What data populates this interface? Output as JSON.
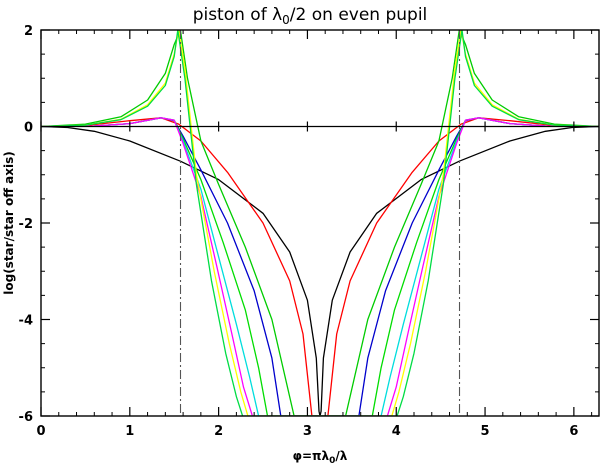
{
  "chart_data": {
    "type": "line",
    "title": "piston of λ0/2 on even pupil",
    "title_main": "piston of λ",
    "title_sub": "0",
    "title_tail": "/2 on even pupil",
    "xlabel": "φ=πλ0/λ",
    "xlabel_main": "φ=πλ",
    "xlabel_sub": "0",
    "xlabel_tail": "/λ",
    "ylabel": "log(star/star off axis)",
    "xlim": [
      0,
      6.283
    ],
    "ylim": [
      -6,
      2
    ],
    "x_ticks": [
      0,
      1,
      2,
      3,
      4,
      5,
      6
    ],
    "y_ticks": [
      -6,
      -4,
      -2,
      0,
      2
    ],
    "x_tick_labels": [
      "0",
      "1",
      "2",
      "3",
      "4",
      "5",
      "6"
    ],
    "y_tick_labels": [
      "-6",
      "-4",
      "-2",
      "0",
      "2"
    ],
    "grid": false,
    "legend": "none",
    "reference_lines": [
      {
        "kind": "horizontal",
        "y": 0,
        "color": "#000000",
        "style": "solid"
      },
      {
        "kind": "vertical",
        "x": 1.5708,
        "color": "#555555",
        "style": "dash-dot"
      },
      {
        "kind": "vertical",
        "x": 4.7124,
        "color": "#555555",
        "style": "dash-dot"
      }
    ],
    "series": [
      {
        "color": "#000000",
        "x": [
          0,
          0.3,
          0.6,
          1.0,
          1.57,
          2.0,
          2.5,
          2.8,
          3.0,
          3.1,
          3.13,
          3.142,
          3.154,
          3.18,
          3.28,
          3.48,
          3.78,
          4.28,
          4.71,
          5.28,
          5.68,
          5.98,
          6.283
        ],
        "y": [
          0,
          -0.02,
          -0.1,
          -0.3,
          -0.72,
          -1.1,
          -1.8,
          -2.6,
          -3.6,
          -4.8,
          -5.9,
          -6.0,
          -5.9,
          -4.8,
          -3.6,
          -2.6,
          -1.8,
          -1.1,
          -0.72,
          -0.3,
          -0.1,
          -0.02,
          0
        ]
      },
      {
        "color": "#ff0000",
        "x": [
          0,
          0.5,
          1.0,
          1.35,
          1.55,
          1.8,
          2.1,
          2.5,
          2.8,
          2.95,
          3.05,
          3.23,
          3.33,
          3.48,
          3.78,
          4.18,
          4.48,
          4.73,
          4.93,
          5.28,
          5.78,
          6.283
        ],
        "y": [
          0,
          0.02,
          0.12,
          0.18,
          0.05,
          -0.3,
          -0.95,
          -2.0,
          -3.2,
          -4.3,
          -6.0,
          -6.0,
          -4.3,
          -3.2,
          -2.0,
          -0.95,
          -0.3,
          0.05,
          0.18,
          0.12,
          0.02,
          0
        ]
      },
      {
        "color": "#00cc00",
        "x": [
          0,
          0.5,
          0.9,
          1.2,
          1.4,
          1.5,
          1.57,
          1.65,
          1.8,
          2.0,
          2.3,
          2.6,
          2.85,
          3.43,
          3.68,
          3.98,
          4.28,
          4.48,
          4.63,
          4.71,
          4.78,
          4.88,
          5.08,
          5.38,
          5.78,
          6.283
        ],
        "y": [
          0,
          0.05,
          0.2,
          0.55,
          1.1,
          1.7,
          2.0,
          1.0,
          -0.3,
          -1.2,
          -2.5,
          -4.0,
          -6.0,
          -6.0,
          -4.0,
          -2.5,
          -1.2,
          -0.3,
          1.0,
          2.0,
          1.7,
          1.1,
          0.55,
          0.2,
          0.05,
          0
        ]
      },
      {
        "color": "#0000cc",
        "x": [
          0,
          0.6,
          1.0,
          1.35,
          1.5,
          1.6,
          1.8,
          2.1,
          2.4,
          2.6,
          2.7,
          3.58,
          3.68,
          3.88,
          4.18,
          4.48,
          4.68,
          4.78,
          4.93,
          5.28,
          5.68,
          6.283
        ],
        "y": [
          0,
          0.01,
          0.06,
          0.18,
          0.12,
          -0.2,
          -0.9,
          -2.0,
          -3.4,
          -4.8,
          -6.0,
          -6.0,
          -4.8,
          -3.4,
          -2.0,
          -0.9,
          -0.2,
          0.12,
          0.18,
          0.06,
          0.01,
          0
        ]
      },
      {
        "color": "#00dd00",
        "x": [
          0,
          0.6,
          1.0,
          1.35,
          1.5,
          1.6,
          1.8,
          2.05,
          2.3,
          2.45,
          2.55,
          3.73,
          3.83,
          3.98,
          4.23,
          4.48,
          4.68,
          4.78,
          4.93,
          5.28,
          5.68,
          6.283
        ],
        "y": [
          0,
          0.01,
          0.06,
          0.18,
          0.13,
          -0.25,
          -1.1,
          -2.4,
          -3.8,
          -5.0,
          -6.0,
          -6.0,
          -5.0,
          -3.8,
          -2.4,
          -1.1,
          -0.25,
          0.13,
          0.18,
          0.06,
          0.01,
          0
        ]
      },
      {
        "color": "#00dddd",
        "x": [
          0,
          0.6,
          1.0,
          1.35,
          1.5,
          1.6,
          1.8,
          2.0,
          2.2,
          2.35,
          2.45,
          3.83,
          3.93,
          4.08,
          4.28,
          4.48,
          4.68,
          4.78,
          4.93,
          5.28,
          5.68,
          6.283
        ],
        "y": [
          0,
          0.01,
          0.06,
          0.18,
          0.13,
          -0.3,
          -1.3,
          -2.7,
          -4.1,
          -5.2,
          -6.0,
          -6.0,
          -5.2,
          -4.1,
          -2.7,
          -1.3,
          -0.3,
          0.13,
          0.18,
          0.06,
          0.01,
          0
        ]
      },
      {
        "color": "#ff00ff",
        "x": [
          0,
          0.6,
          1.0,
          1.35,
          1.5,
          1.6,
          1.8,
          1.98,
          2.15,
          2.28,
          2.38,
          3.9,
          4.0,
          4.13,
          4.3,
          4.48,
          4.68,
          4.78,
          4.93,
          5.28,
          5.68,
          6.283
        ],
        "y": [
          0,
          0.01,
          0.06,
          0.18,
          0.13,
          -0.35,
          -1.45,
          -2.9,
          -4.3,
          -5.4,
          -6.0,
          -6.0,
          -5.4,
          -4.3,
          -2.9,
          -1.45,
          -0.35,
          0.13,
          0.18,
          0.06,
          0.01,
          0
        ]
      },
      {
        "color": "#ffff00",
        "x": [
          0,
          0.5,
          0.9,
          1.2,
          1.4,
          1.5,
          1.55,
          1.62,
          1.75,
          1.95,
          2.12,
          2.25,
          2.33,
          3.95,
          4.03,
          4.16,
          4.33,
          4.53,
          4.66,
          4.73,
          4.78,
          4.88,
          5.08,
          5.38,
          5.78,
          6.283
        ],
        "y": [
          0,
          0.03,
          0.15,
          0.45,
          0.9,
          1.5,
          2.0,
          1.2,
          -1.0,
          -3.0,
          -4.5,
          -5.5,
          -6.0,
          -6.0,
          -5.5,
          -4.5,
          -3.0,
          -1.0,
          1.2,
          2.0,
          1.5,
          0.9,
          0.45,
          0.15,
          0.03,
          0
        ]
      },
      {
        "color": "#00dd44",
        "x": [
          0,
          0.5,
          0.9,
          1.2,
          1.4,
          1.5,
          1.54,
          1.62,
          1.75,
          1.92,
          2.08,
          2.2,
          2.27,
          4.01,
          4.08,
          4.2,
          4.36,
          4.53,
          4.66,
          4.74,
          4.78,
          4.88,
          5.08,
          5.38,
          5.78,
          6.283
        ],
        "y": [
          0,
          0.03,
          0.14,
          0.42,
          0.85,
          1.45,
          2.0,
          1.0,
          -1.2,
          -3.2,
          -4.7,
          -5.6,
          -6.0,
          -6.0,
          -5.6,
          -4.7,
          -3.2,
          -1.2,
          1.0,
          2.0,
          1.45,
          0.85,
          0.42,
          0.14,
          0.03,
          0
        ]
      }
    ]
  }
}
